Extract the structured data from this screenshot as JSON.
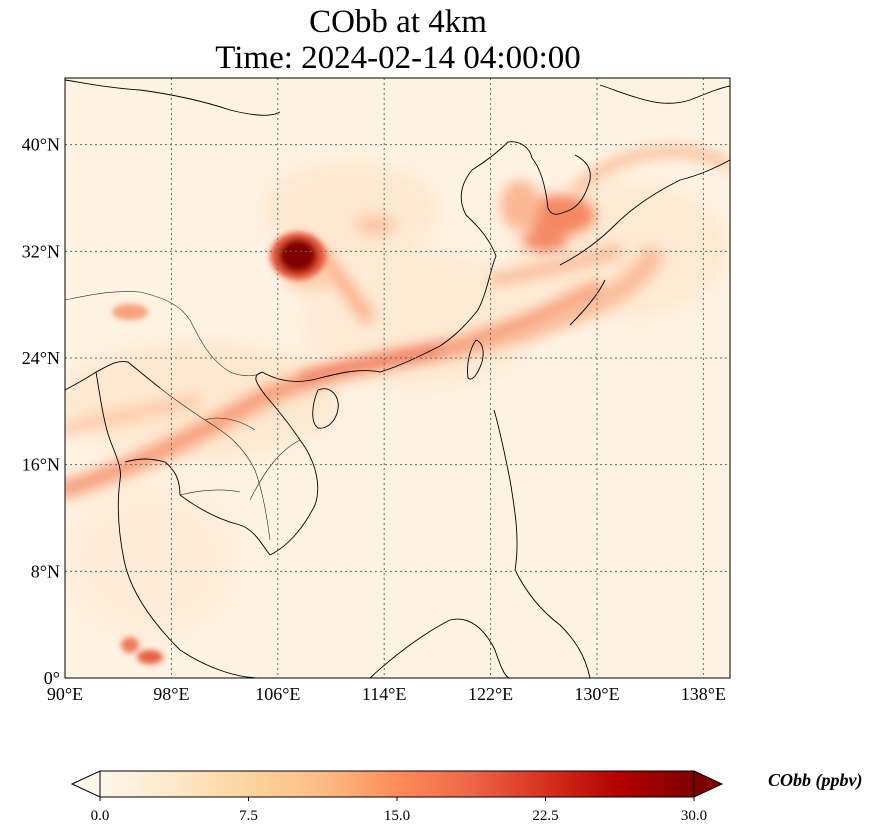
{
  "title": {
    "line1": "CObb at 4km",
    "line2": "Time: 2024-02-14 04:00:00"
  },
  "map": {
    "lon_range": [
      90,
      140
    ],
    "lat_range": [
      0,
      45
    ],
    "x_ticks": [
      {
        "value": 90,
        "label": "90°E"
      },
      {
        "value": 98,
        "label": "98°E"
      },
      {
        "value": 106,
        "label": "106°E"
      },
      {
        "value": 114,
        "label": "114°E"
      },
      {
        "value": 122,
        "label": "122°E"
      },
      {
        "value": 130,
        "label": "130°E"
      },
      {
        "value": 138,
        "label": "138°E"
      }
    ],
    "y_ticks": [
      {
        "value": 0,
        "label": "0°"
      },
      {
        "value": 8,
        "label": "8°N"
      },
      {
        "value": 16,
        "label": "16°N"
      },
      {
        "value": 24,
        "label": "24°N"
      },
      {
        "value": 32,
        "label": "32°N"
      },
      {
        "value": 40,
        "label": "40°N"
      }
    ],
    "gridlines": "dotted",
    "coastlines": true,
    "borders": true
  },
  "colorbar": {
    "label": "CObb (ppbv)",
    "min": 0.0,
    "max": 30.0,
    "extend": "both",
    "cmap": "OrRd",
    "ticks": [
      "0.0",
      "7.5",
      "15.0",
      "22.5",
      "30.0"
    ],
    "colors": [
      "#fff7ec",
      "#fee8c8",
      "#fdd49e",
      "#fdbb84",
      "#fc8d59",
      "#ef6548",
      "#d7301f",
      "#b30000",
      "#7f0000"
    ]
  },
  "plumes": [
    {
      "name": "southwest-china-hotspot",
      "lon": 107.5,
      "lat": 31.5,
      "value": 30
    },
    {
      "name": "transport-band",
      "path_lon": [
        90,
        97,
        104,
        112,
        120,
        126,
        130
      ],
      "path_lat": [
        14.5,
        17,
        20.5,
        23,
        24.8,
        26.5,
        29
      ],
      "value": 12
    },
    {
      "name": "korea-japan-plume",
      "lon": 127.5,
      "lat": 34.5,
      "value": 14
    },
    {
      "name": "myanmar-plume",
      "lon": 95.5,
      "lat": 27.5,
      "value": 9
    },
    {
      "name": "sumatra-plume",
      "lon": 96,
      "lat": 2,
      "value": 14
    }
  ]
}
